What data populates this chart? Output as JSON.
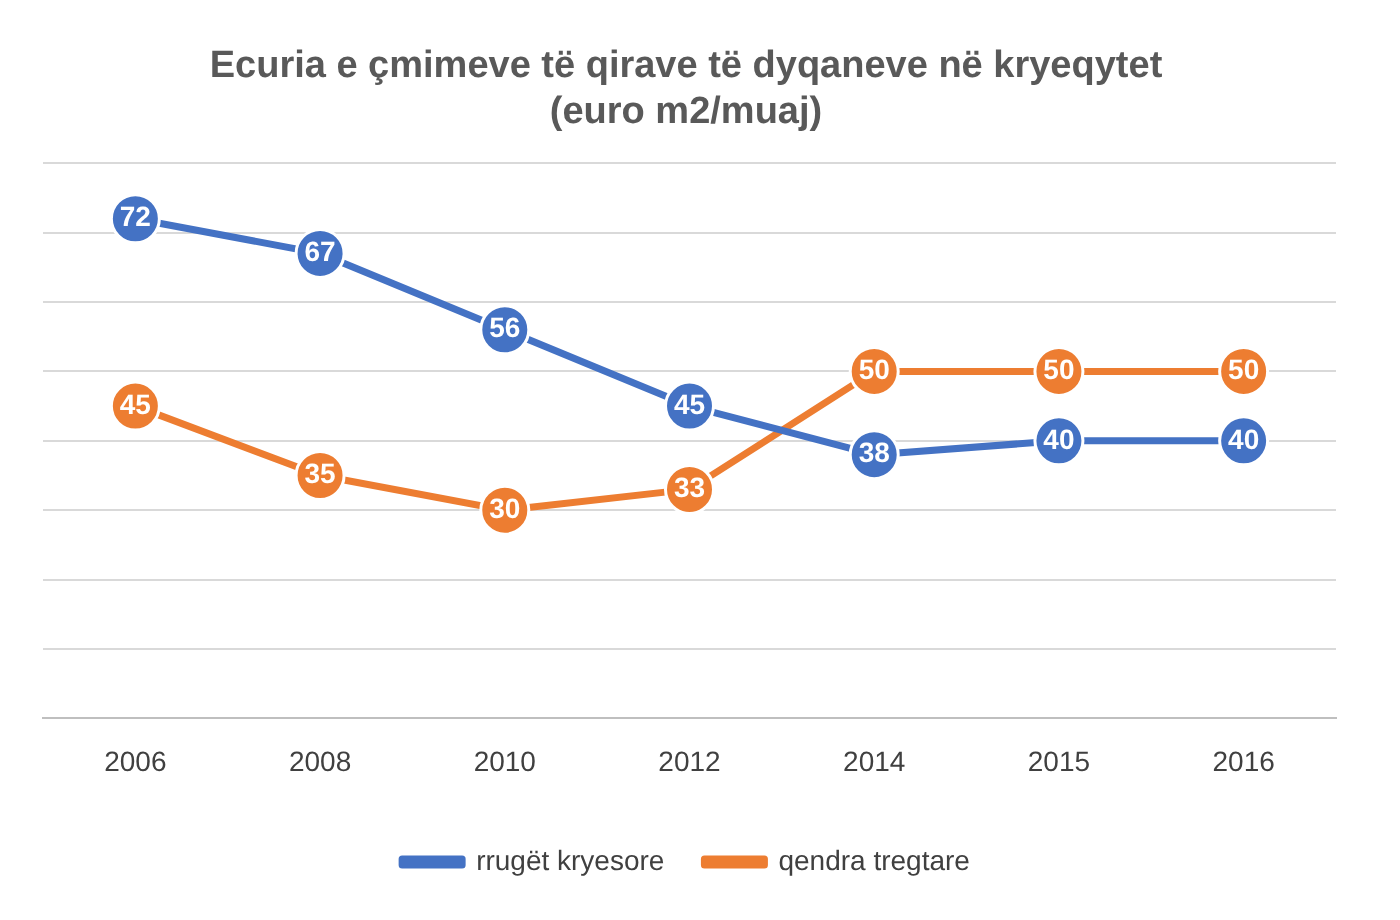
{
  "chart_data": {
    "type": "line",
    "title": "Ecuria e çmimeve të qirave të dyqaneve në kryeqytet\n(euro m2/muaj)",
    "categories": [
      "2006",
      "2008",
      "2010",
      "2012",
      "2014",
      "2015",
      "2016"
    ],
    "series": [
      {
        "name": "rrugët kryesore",
        "color": "#4472c4",
        "values": [
          72,
          67,
          56,
          45,
          38,
          40,
          40
        ]
      },
      {
        "name": "qendra tregtare",
        "color": "#ed7d31",
        "values": [
          45,
          35,
          30,
          33,
          50,
          50,
          50
        ]
      }
    ],
    "ylim": [
      0,
      80
    ],
    "yticks": [
      {
        "value": 0,
        "label": null
      },
      {
        "value": 10,
        "label": null
      },
      {
        "value": 20,
        "label": null
      },
      {
        "value": 30,
        "label": null
      },
      {
        "value": 40,
        "label": null
      },
      {
        "value": 50,
        "label": null
      },
      {
        "value": 60,
        "label": null
      },
      {
        "value": 70,
        "label": null
      },
      {
        "value": 80,
        "label": null
      }
    ],
    "tick_labels": "x",
    "grid": "y",
    "legend": "bottom",
    "marker": "circle",
    "line_style": "solid",
    "data_labels": true
  }
}
